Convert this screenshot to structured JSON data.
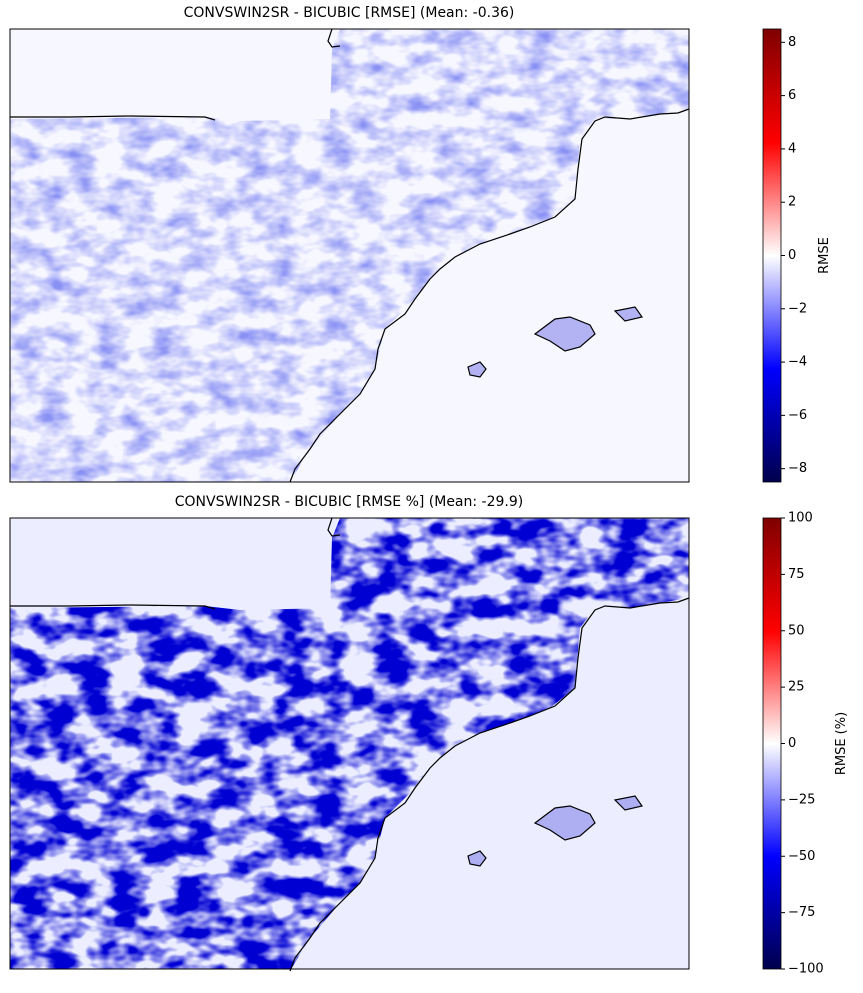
{
  "chart_data": [
    {
      "type": "heatmap",
      "title": "CONVSWIN2SR - BICUBIC [RMSE] (Mean: -0.36)",
      "colorbar_label": "RMSE",
      "cmap": "seismic",
      "clim": [
        -8.5,
        8.5
      ],
      "cticks": [
        {
          "value": -8,
          "label": "−8"
        },
        {
          "value": -6,
          "label": "−6"
        },
        {
          "value": -4,
          "label": "−4"
        },
        {
          "value": -2,
          "label": "−2"
        },
        0,
        2,
        4,
        6,
        8
      ]
    },
    {
      "type": "heatmap",
      "title": "CONVSWIN2SR - BICUBIC [RMSE %] (Mean: -29.9)",
      "colorbar_label": "RMSE (%)",
      "cmap": "seismic",
      "clim": [
        -100,
        100
      ],
      "cticks": [
        {
          "value": -100,
          "label": "−100"
        },
        {
          "value": -75,
          "label": "−75"
        },
        {
          "value": -50,
          "label": "−50"
        },
        {
          "value": -25,
          "label": "−25"
        },
        0,
        25,
        50,
        75,
        100
      ]
    }
  ]
}
